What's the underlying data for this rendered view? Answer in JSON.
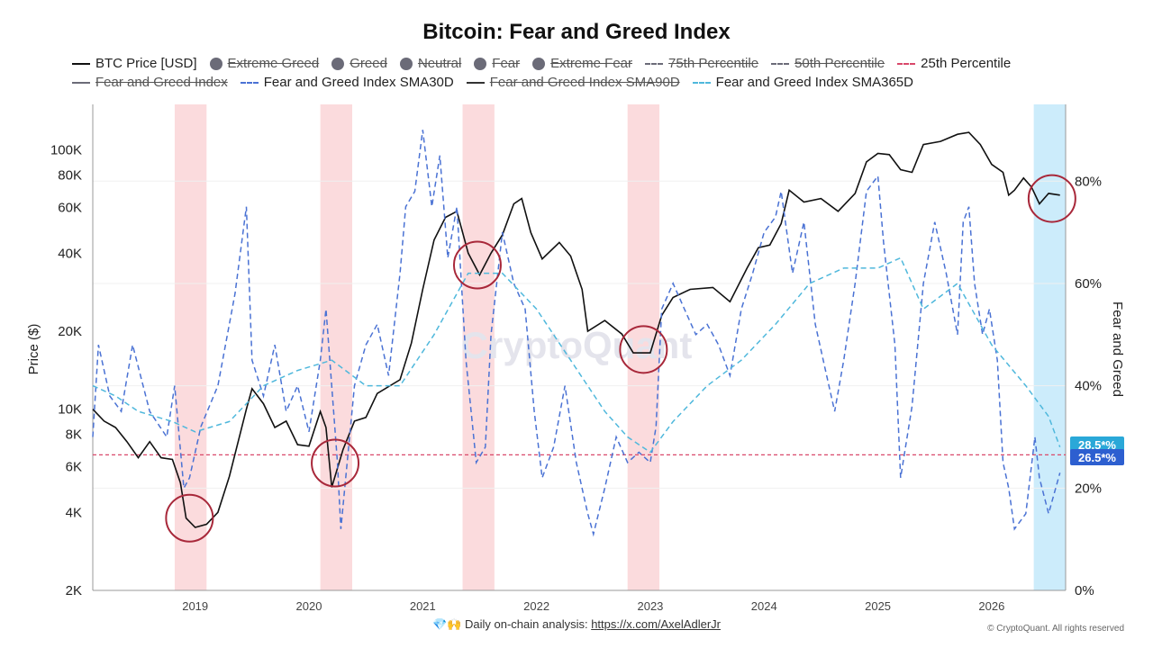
{
  "chart_title": "Bitcoin: Fear and Greed Index",
  "legend": [
    {
      "label": "BTC Price [USD]",
      "style": "line",
      "color": "#111111",
      "active": true
    },
    {
      "label": "Extreme Greed",
      "style": "dot",
      "color": "#6b6b78",
      "active": false
    },
    {
      "label": "Greed",
      "style": "dot",
      "color": "#6b6b78",
      "active": false
    },
    {
      "label": "Neutral",
      "style": "dot",
      "color": "#6b6b78",
      "active": false
    },
    {
      "label": "Fear",
      "style": "dot",
      "color": "#6b6b78",
      "active": false
    },
    {
      "label": "Extreme Fear",
      "style": "dot",
      "color": "#6b6b78",
      "active": false
    },
    {
      "label": "75th Percentile",
      "style": "dash",
      "color": "#6b6b78",
      "active": false
    },
    {
      "label": "50th Percentile",
      "style": "dash",
      "color": "#6b6b78",
      "active": false
    },
    {
      "label": "25th Percentile",
      "style": "dash",
      "color": "#d9486a",
      "active": true
    },
    {
      "label": "Fear and Greed Index",
      "style": "line",
      "color": "#6b6b78",
      "active": false
    },
    {
      "label": "Fear and Greed Index SMA30D",
      "style": "dash",
      "color": "#4a72d4",
      "active": true
    },
    {
      "label": "Fear and Greed Index SMA90D",
      "style": "line",
      "color": "#333333",
      "active": false
    },
    {
      "label": "Fear and Greed Index SMA365D",
      "style": "dash",
      "color": "#4fb8dc",
      "active": true
    }
  ],
  "left_axis_label": "Price ($)",
  "right_axis_label": "Fear and Greed",
  "watermark": "CryptoQuant",
  "footer": {
    "emoji": "💎🙌",
    "text": "Daily on-chain analysis: ",
    "link": "https://x.com/AxelAdlerJr"
  },
  "copyright": "© CryptoQuant. All rights reserved",
  "value_badges": [
    {
      "label": "28.5*%",
      "color": "#2aa8d8"
    },
    {
      "label": "26.5*%",
      "color": "#2d5fd0"
    }
  ],
  "chart_data": {
    "type": "line",
    "x_ticks": [
      "2019",
      "2020",
      "2021",
      "2022",
      "2023",
      "2024",
      "2025",
      "2026"
    ],
    "x_range": [
      2018.1,
      2026.65
    ],
    "y_left": {
      "scale": "log",
      "range": [
        2000,
        150000
      ],
      "ticks": [
        "2K",
        "4K",
        "6K",
        "8K",
        "10K",
        "20K",
        "40K",
        "60K",
        "80K",
        "100K"
      ],
      "tick_values": [
        2000,
        4000,
        6000,
        8000,
        10000,
        20000,
        40000,
        60000,
        80000,
        100000
      ]
    },
    "y_right": {
      "range": [
        0,
        95
      ],
      "ticks": [
        "0%",
        "20%",
        "40%",
        "60%",
        "80%"
      ],
      "tick_values": [
        0,
        20,
        40,
        60,
        80
      ]
    },
    "percentile_25": 26.5,
    "highlight_zones": [
      {
        "x0": 2018.82,
        "x1": 2019.1,
        "color": "#fbd9db"
      },
      {
        "x0": 2020.1,
        "x1": 2020.38,
        "color": "#fbd9db"
      },
      {
        "x0": 2021.35,
        "x1": 2021.63,
        "color": "#fbd9db"
      },
      {
        "x0": 2022.8,
        "x1": 2023.08,
        "color": "#fbd9db"
      },
      {
        "x0": 2026.37,
        "x1": 2026.65,
        "color": "#c9ebfb"
      }
    ],
    "circles": [
      {
        "x": 2018.95,
        "price": 3800
      },
      {
        "x": 2020.23,
        "price": 6200
      },
      {
        "x": 2021.48,
        "price": 36000
      },
      {
        "x": 2022.94,
        "price": 17000
      },
      {
        "x": 2026.53,
        "price": 65000
      }
    ],
    "series": [
      {
        "name": "BTC Price [USD]",
        "axis": "left",
        "color": "#111111",
        "dash": false,
        "points": [
          [
            2018.1,
            10000
          ],
          [
            2018.2,
            9000
          ],
          [
            2018.3,
            8500
          ],
          [
            2018.4,
            7500
          ],
          [
            2018.5,
            6500
          ],
          [
            2018.6,
            7500
          ],
          [
            2018.7,
            6500
          ],
          [
            2018.8,
            6400
          ],
          [
            2018.87,
            5200
          ],
          [
            2018.92,
            3800
          ],
          [
            2019.0,
            3500
          ],
          [
            2019.1,
            3600
          ],
          [
            2019.2,
            4000
          ],
          [
            2019.3,
            5500
          ],
          [
            2019.45,
            10000
          ],
          [
            2019.5,
            12000
          ],
          [
            2019.6,
            10500
          ],
          [
            2019.7,
            8500
          ],
          [
            2019.8,
            9000
          ],
          [
            2019.9,
            7300
          ],
          [
            2020.0,
            7200
          ],
          [
            2020.1,
            9800
          ],
          [
            2020.15,
            8500
          ],
          [
            2020.2,
            5000
          ],
          [
            2020.3,
            7000
          ],
          [
            2020.4,
            9000
          ],
          [
            2020.5,
            9300
          ],
          [
            2020.6,
            11500
          ],
          [
            2020.8,
            13000
          ],
          [
            2020.9,
            18000
          ],
          [
            2021.0,
            29000
          ],
          [
            2021.1,
            45000
          ],
          [
            2021.2,
            55000
          ],
          [
            2021.3,
            58000
          ],
          [
            2021.4,
            40000
          ],
          [
            2021.5,
            33000
          ],
          [
            2021.6,
            40000
          ],
          [
            2021.7,
            47000
          ],
          [
            2021.8,
            62000
          ],
          [
            2021.87,
            65000
          ],
          [
            2021.95,
            48000
          ],
          [
            2022.05,
            38000
          ],
          [
            2022.2,
            44000
          ],
          [
            2022.3,
            39000
          ],
          [
            2022.4,
            29000
          ],
          [
            2022.45,
            20000
          ],
          [
            2022.6,
            22000
          ],
          [
            2022.75,
            19500
          ],
          [
            2022.85,
            16500
          ],
          [
            2023.0,
            16500
          ],
          [
            2023.1,
            23000
          ],
          [
            2023.2,
            27000
          ],
          [
            2023.35,
            29000
          ],
          [
            2023.55,
            29500
          ],
          [
            2023.7,
            26000
          ],
          [
            2023.85,
            35000
          ],
          [
            2023.95,
            42000
          ],
          [
            2024.05,
            43000
          ],
          [
            2024.15,
            52000
          ],
          [
            2024.22,
            70000
          ],
          [
            2024.35,
            63000
          ],
          [
            2024.5,
            65000
          ],
          [
            2024.65,
            58000
          ],
          [
            2024.8,
            68000
          ],
          [
            2024.9,
            90000
          ],
          [
            2025.0,
            97000
          ],
          [
            2025.1,
            96000
          ],
          [
            2025.2,
            84000
          ],
          [
            2025.3,
            82000
          ],
          [
            2025.4,
            105000
          ],
          [
            2025.55,
            108000
          ],
          [
            2025.7,
            115000
          ],
          [
            2025.8,
            117000
          ],
          [
            2025.9,
            105000
          ],
          [
            2026.0,
            88000
          ],
          [
            2026.1,
            82000
          ],
          [
            2026.15,
            67000
          ],
          [
            2026.2,
            70000
          ],
          [
            2026.28,
            78000
          ],
          [
            2026.35,
            72000
          ],
          [
            2026.42,
            62000
          ],
          [
            2026.5,
            68000
          ],
          [
            2026.6,
            67000
          ]
        ]
      },
      {
        "name": "Fear and Greed Index SMA30D",
        "axis": "right",
        "color": "#4a72d4",
        "dash": true,
        "points": [
          [
            2018.1,
            30
          ],
          [
            2018.15,
            48
          ],
          [
            2018.25,
            38
          ],
          [
            2018.35,
            35
          ],
          [
            2018.45,
            48
          ],
          [
            2018.6,
            35
          ],
          [
            2018.75,
            30
          ],
          [
            2018.82,
            40
          ],
          [
            2018.9,
            20
          ],
          [
            2018.95,
            22
          ],
          [
            2019.05,
            32
          ],
          [
            2019.2,
            40
          ],
          [
            2019.35,
            58
          ],
          [
            2019.45,
            75
          ],
          [
            2019.5,
            45
          ],
          [
            2019.6,
            38
          ],
          [
            2019.7,
            48
          ],
          [
            2019.8,
            35
          ],
          [
            2019.9,
            40
          ],
          [
            2020.0,
            31
          ],
          [
            2020.1,
            45
          ],
          [
            2020.15,
            55
          ],
          [
            2020.25,
            25
          ],
          [
            2020.28,
            12
          ],
          [
            2020.4,
            40
          ],
          [
            2020.5,
            48
          ],
          [
            2020.6,
            52
          ],
          [
            2020.7,
            42
          ],
          [
            2020.8,
            62
          ],
          [
            2020.85,
            75
          ],
          [
            2020.93,
            78
          ],
          [
            2021.0,
            90
          ],
          [
            2021.08,
            75
          ],
          [
            2021.15,
            85
          ],
          [
            2021.22,
            65
          ],
          [
            2021.3,
            75
          ],
          [
            2021.38,
            45
          ],
          [
            2021.47,
            25
          ],
          [
            2021.55,
            28
          ],
          [
            2021.6,
            50
          ],
          [
            2021.7,
            70
          ],
          [
            2021.8,
            60
          ],
          [
            2021.9,
            55
          ],
          [
            2021.98,
            35
          ],
          [
            2022.05,
            22
          ],
          [
            2022.15,
            28
          ],
          [
            2022.25,
            40
          ],
          [
            2022.35,
            25
          ],
          [
            2022.45,
            15
          ],
          [
            2022.5,
            11
          ],
          [
            2022.6,
            20
          ],
          [
            2022.7,
            30
          ],
          [
            2022.8,
            25
          ],
          [
            2022.9,
            27
          ],
          [
            2023.0,
            25
          ],
          [
            2023.05,
            32
          ],
          [
            2023.1,
            55
          ],
          [
            2023.2,
            60
          ],
          [
            2023.3,
            55
          ],
          [
            2023.4,
            50
          ],
          [
            2023.5,
            52
          ],
          [
            2023.6,
            48
          ],
          [
            2023.7,
            42
          ],
          [
            2023.8,
            55
          ],
          [
            2023.9,
            62
          ],
          [
            2024.0,
            70
          ],
          [
            2024.1,
            73
          ],
          [
            2024.15,
            78
          ],
          [
            2024.25,
            62
          ],
          [
            2024.35,
            72
          ],
          [
            2024.45,
            52
          ],
          [
            2024.55,
            42
          ],
          [
            2024.62,
            35
          ],
          [
            2024.7,
            45
          ],
          [
            2024.8,
            60
          ],
          [
            2024.9,
            78
          ],
          [
            2025.0,
            81
          ],
          [
            2025.05,
            68
          ],
          [
            2025.15,
            48
          ],
          [
            2025.2,
            22
          ],
          [
            2025.3,
            36
          ],
          [
            2025.4,
            60
          ],
          [
            2025.5,
            72
          ],
          [
            2025.6,
            62
          ],
          [
            2025.7,
            50
          ],
          [
            2025.75,
            72
          ],
          [
            2025.8,
            75
          ],
          [
            2025.85,
            60
          ],
          [
            2025.92,
            50
          ],
          [
            2025.98,
            55
          ],
          [
            2026.05,
            45
          ],
          [
            2026.1,
            25
          ],
          [
            2026.15,
            20
          ],
          [
            2026.2,
            12
          ],
          [
            2026.3,
            15
          ],
          [
            2026.38,
            30
          ],
          [
            2026.42,
            22
          ],
          [
            2026.5,
            15
          ],
          [
            2026.6,
            23
          ]
        ]
      },
      {
        "name": "Fear and Greed Index SMA365D",
        "axis": "right",
        "color": "#4fb8dc",
        "dash": true,
        "points": [
          [
            2018.1,
            40
          ],
          [
            2018.3,
            38
          ],
          [
            2018.5,
            35
          ],
          [
            2018.8,
            33
          ],
          [
            2019.0,
            31
          ],
          [
            2019.3,
            33
          ],
          [
            2019.6,
            40
          ],
          [
            2019.9,
            43
          ],
          [
            2020.2,
            45
          ],
          [
            2020.5,
            40
          ],
          [
            2020.8,
            40
          ],
          [
            2021.1,
            50
          ],
          [
            2021.4,
            62
          ],
          [
            2021.7,
            62
          ],
          [
            2022.0,
            55
          ],
          [
            2022.3,
            45
          ],
          [
            2022.6,
            35
          ],
          [
            2022.8,
            30
          ],
          [
            2023.0,
            27
          ],
          [
            2023.2,
            33
          ],
          [
            2023.5,
            40
          ],
          [
            2023.8,
            45
          ],
          [
            2024.1,
            52
          ],
          [
            2024.4,
            60
          ],
          [
            2024.7,
            63
          ],
          [
            2025.0,
            63
          ],
          [
            2025.2,
            65
          ],
          [
            2025.4,
            55
          ],
          [
            2025.7,
            60
          ],
          [
            2026.0,
            48
          ],
          [
            2026.3,
            40
          ],
          [
            2026.5,
            34
          ],
          [
            2026.6,
            28
          ]
        ]
      }
    ]
  }
}
